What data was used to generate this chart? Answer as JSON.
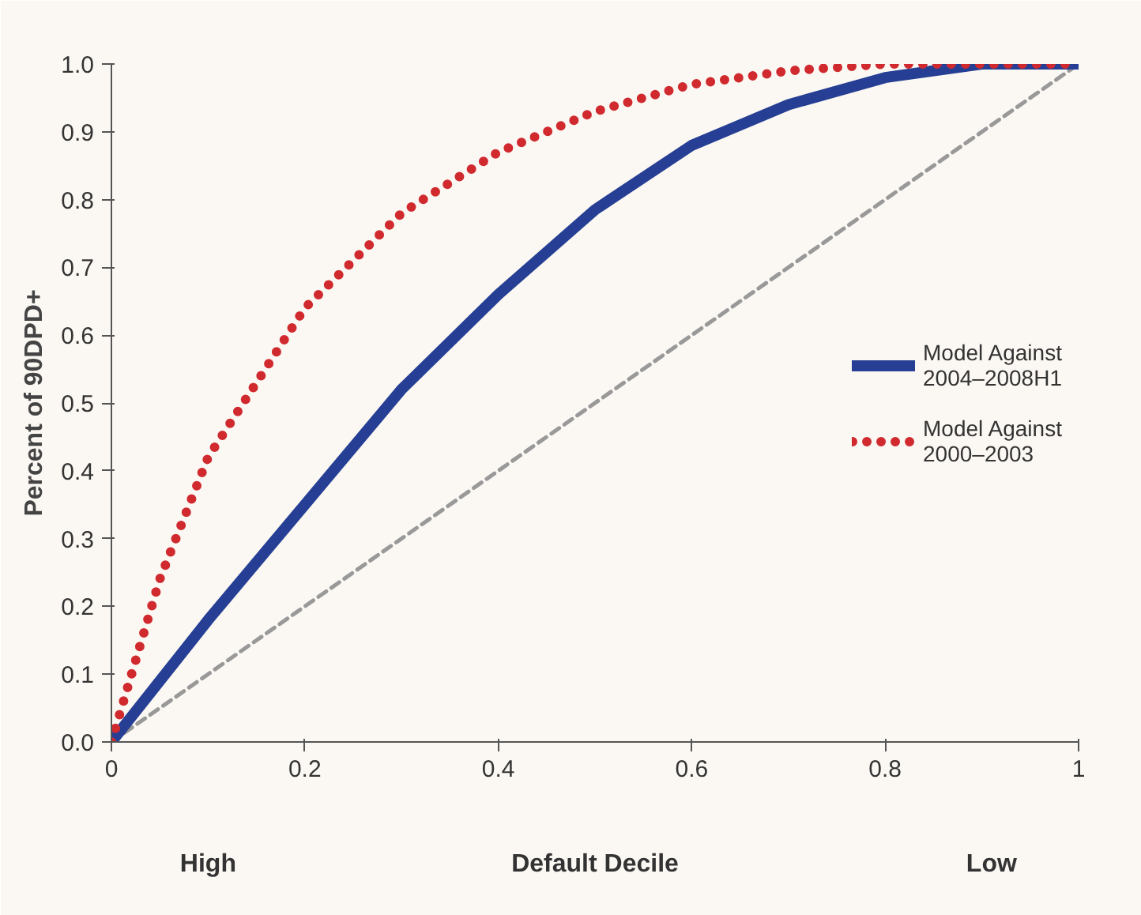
{
  "chart_data": {
    "type": "line",
    "xlabel": "Default Decile",
    "ylabel": "Percent of 90DPD+",
    "annotations": [
      "High",
      "Low"
    ],
    "xlim": [
      0,
      1
    ],
    "ylim": [
      0,
      1
    ],
    "xticks": [
      0,
      0.2,
      0.4,
      0.6,
      0.8,
      1
    ],
    "yticks": [
      {
        "value": 0,
        "label": "0.0"
      },
      0.1,
      0.2,
      0.3,
      0.4,
      0.5,
      0.6,
      0.7,
      0.8,
      0.9,
      {
        "value": 1,
        "label": "1.0"
      }
    ],
    "grid": false,
    "legend": "right",
    "marker": "none",
    "series": [
      {
        "color": "#999999",
        "line_style": "dashed",
        "x": [
          0,
          1
        ],
        "values": [
          0,
          1
        ]
      },
      {
        "name": "Model Against\n2004–2008H1",
        "color": "#263f94",
        "line_style": "solid",
        "x": [
          0,
          0.1,
          0.2,
          0.3,
          0.4,
          0.5,
          0.6,
          0.7,
          0.8,
          0.9,
          1
        ],
        "values": [
          0,
          0.18,
          0.35,
          0.52,
          0.66,
          0.785,
          0.88,
          0.94,
          0.98,
          1.0,
          1.0
        ]
      },
      {
        "name": "Model Against\n2000–2003",
        "color": "#d02a2f",
        "line_style": "dotted",
        "x": [
          0,
          0.05,
          0.1,
          0.2,
          0.3,
          0.4,
          0.5,
          0.6,
          0.7,
          0.8,
          0.9,
          1
        ],
        "values": [
          0,
          0.24,
          0.42,
          0.64,
          0.78,
          0.87,
          0.93,
          0.97,
          0.99,
          1.0,
          1.0,
          1.0
        ]
      }
    ]
  }
}
